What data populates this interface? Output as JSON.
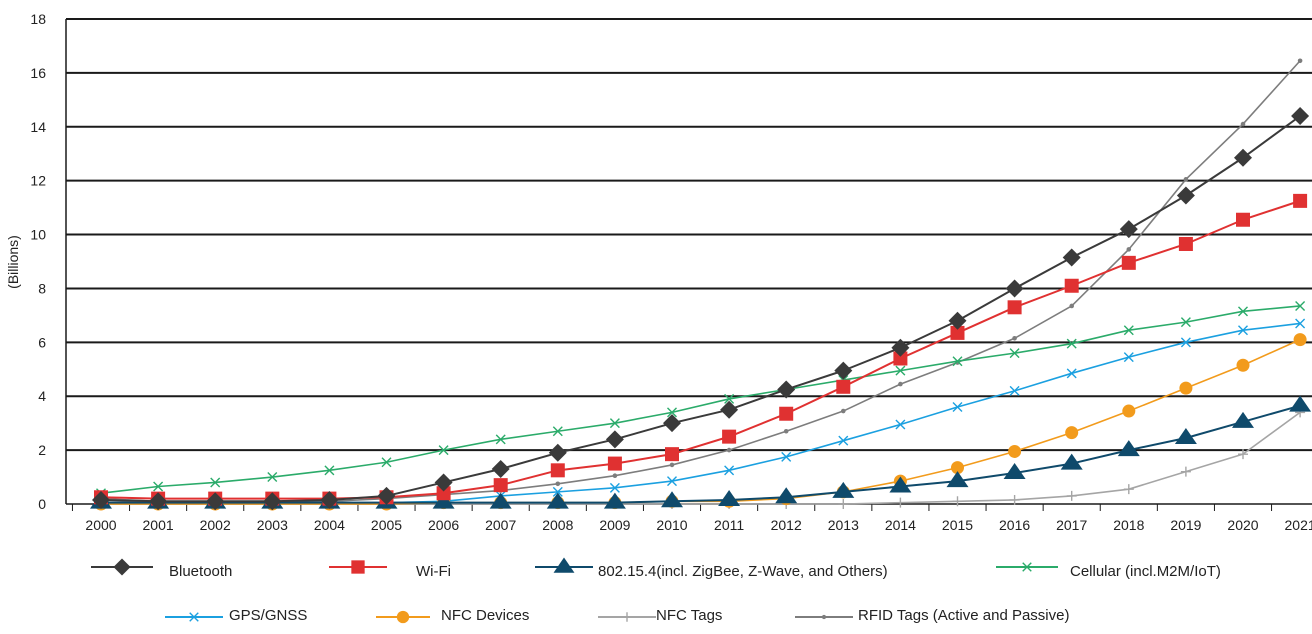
{
  "chart_data": {
    "type": "line",
    "ylabel": "(Billions)",
    "xlabel": "",
    "ylim": [
      0,
      18
    ],
    "yticks": [
      0,
      2,
      4,
      6,
      8,
      10,
      12,
      14,
      16,
      18
    ],
    "x": [
      "2000",
      "2001",
      "2002",
      "2003",
      "2004",
      "2005",
      "2006",
      "2007",
      "2008",
      "2009",
      "2010",
      "2011",
      "2012",
      "2013",
      "2014",
      "2015",
      "2016",
      "2017",
      "2018",
      "2019",
      "2020",
      "2021"
    ],
    "grid": "horizontal",
    "legend_position": "bottom",
    "series": [
      {
        "name": "Bluetooth",
        "color": "#3a3a3a",
        "marker": "diamond",
        "values": [
          0.15,
          0.1,
          0.1,
          0.1,
          0.15,
          0.3,
          0.8,
          1.3,
          1.9,
          2.4,
          3.0,
          3.5,
          4.25,
          4.95,
          5.8,
          6.8,
          8.0,
          9.15,
          10.2,
          11.45,
          12.85,
          14.4
        ]
      },
      {
        "name": "Wi-Fi",
        "color": "#e03131",
        "marker": "square",
        "values": [
          0.25,
          0.2,
          0.2,
          0.2,
          0.2,
          0.25,
          0.4,
          0.7,
          1.25,
          1.5,
          1.85,
          2.5,
          3.35,
          4.35,
          5.4,
          6.35,
          7.3,
          8.1,
          8.95,
          9.65,
          10.55,
          11.25
        ]
      },
      {
        "name": "802.15.4(incl. ZigBee, Z-Wave, and Others)",
        "color": "#0f4a6b",
        "marker": "triangle",
        "values": [
          0.05,
          0.05,
          0.05,
          0.05,
          0.05,
          0.05,
          0.05,
          0.05,
          0.05,
          0.05,
          0.1,
          0.15,
          0.25,
          0.45,
          0.65,
          0.85,
          1.15,
          1.5,
          2.0,
          2.45,
          3.05,
          3.65
        ]
      },
      {
        "name": "Cellular (incl.M2M/IoT)",
        "color": "#2bab6a",
        "marker": "x",
        "values": [
          0.4,
          0.65,
          0.8,
          1.0,
          1.25,
          1.55,
          2.0,
          2.4,
          2.7,
          3.0,
          3.4,
          3.9,
          4.25,
          4.6,
          4.95,
          5.3,
          5.6,
          5.95,
          6.45,
          6.75,
          7.15,
          7.35
        ]
      },
      {
        "name": "GPS/GNSS",
        "color": "#1ba0e0",
        "marker": "x",
        "values": [
          0.05,
          0.05,
          0.05,
          0.05,
          0.05,
          0.05,
          0.1,
          0.3,
          0.45,
          0.6,
          0.85,
          1.25,
          1.75,
          2.35,
          2.95,
          3.6,
          4.2,
          4.85,
          5.45,
          6.0,
          6.45,
          6.7
        ]
      },
      {
        "name": "NFC Devices",
        "color": "#f29b1c",
        "marker": "circle",
        "values": [
          0.0,
          0.0,
          0.0,
          0.0,
          0.0,
          0.0,
          0.05,
          0.05,
          0.05,
          0.05,
          0.1,
          0.1,
          0.2,
          0.45,
          0.85,
          1.35,
          1.95,
          2.65,
          3.45,
          4.3,
          5.15,
          6.1
        ]
      },
      {
        "name": "NFC Tags",
        "color": "#a5a5a5",
        "marker": "plus",
        "values": [
          0.0,
          0.0,
          0.0,
          0.0,
          0.0,
          0.0,
          0.0,
          0.0,
          0.0,
          0.0,
          0.0,
          0.0,
          0.0,
          0.0,
          0.05,
          0.1,
          0.15,
          0.3,
          0.55,
          1.2,
          1.85,
          3.4
        ]
      },
      {
        "name": "RFID Tags (Active and Passive)",
        "color": "#7d7d7d",
        "marker": "dot",
        "values": [
          0.2,
          0.1,
          0.1,
          0.1,
          0.1,
          0.2,
          0.35,
          0.5,
          0.75,
          1.05,
          1.45,
          2.0,
          2.7,
          3.45,
          4.45,
          5.25,
          6.15,
          7.35,
          9.45,
          12.05,
          14.1,
          16.45
        ]
      }
    ]
  }
}
